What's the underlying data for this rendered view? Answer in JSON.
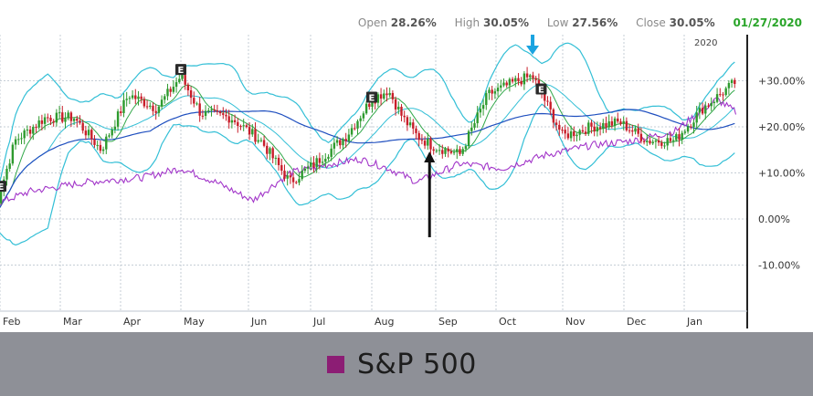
{
  "header": {
    "open_label": "Open",
    "open_value": "28.26%",
    "high_label": "High",
    "high_value": "30.05%",
    "low_label": "Low",
    "low_value": "27.56%",
    "close_label": "Close",
    "close_value": "30.05%",
    "date": "01/27/2020"
  },
  "legend": {
    "label": "S&P 500",
    "color": "#8c1d74"
  },
  "colors": {
    "up_candle": "#2e9a2e",
    "down_candle": "#c81e2a",
    "bollinger": "#33bfd6",
    "ma_short": "#32a84a",
    "ma_long": "#1f4fbf",
    "sp500": "#a236c9",
    "arrow_blue": "#1aa3e0",
    "arrow_black": "#111111"
  },
  "chart_data": {
    "type": "line",
    "title": "",
    "year_label": "2020",
    "x_ticks": [
      "Feb",
      "Mar",
      "Apr",
      "May",
      "Jun",
      "Jul",
      "Aug",
      "Sep",
      "Oct",
      "Nov",
      "Dec",
      "Jan"
    ],
    "y_ticks": [
      "+30.00%",
      "+20.00%",
      "+10.00%",
      "0.00%",
      "-10.00%"
    ],
    "y_tick_values": [
      30,
      20,
      10,
      0,
      -10
    ],
    "ylim": [
      -20,
      40
    ],
    "grid": true,
    "earnings_marker": "E",
    "earnings_dates": [
      "2019-01-31",
      "2019-05-01",
      "2019-08-01",
      "2019-10-22"
    ],
    "annotations": [
      {
        "type": "arrow-down",
        "color": "blue",
        "date": "2019-10-18"
      },
      {
        "type": "arrow-up",
        "color": "black",
        "date": "2019-08-29"
      }
    ],
    "series": [
      {
        "name": "",
        "kind": "price",
        "x": [
          "2019-01-28",
          "2019-02-08",
          "2019-02-22",
          "2019-03-08",
          "2019-03-22",
          "2019-04-05",
          "2019-04-19",
          "2019-05-01",
          "2019-05-10",
          "2019-05-24",
          "2019-06-07",
          "2019-06-21",
          "2019-07-03",
          "2019-07-19",
          "2019-08-01",
          "2019-08-09",
          "2019-08-16",
          "2019-08-23",
          "2019-08-30",
          "2019-09-13",
          "2019-09-27",
          "2019-10-11",
          "2019-10-18",
          "2019-11-01",
          "2019-11-15",
          "2019-11-29",
          "2019-12-13",
          "2019-12-27",
          "2020-01-10",
          "2020-01-27"
        ],
        "values": [
          0,
          17,
          22,
          22,
          15,
          27,
          24,
          31,
          23,
          22,
          17,
          8,
          12,
          18,
          26,
          28,
          22,
          18,
          16,
          14,
          27,
          30,
          31,
          18,
          20,
          21,
          17,
          17,
          24,
          30
        ]
      },
      {
        "name": "S&P 500",
        "kind": "benchmark",
        "x": [
          "2019-01-28",
          "2019-02-15",
          "2019-03-15",
          "2019-04-12",
          "2019-05-01",
          "2019-05-17",
          "2019-06-03",
          "2019-06-21",
          "2019-07-12",
          "2019-07-26",
          "2019-08-09",
          "2019-08-23",
          "2019-09-13",
          "2019-10-04",
          "2019-10-25",
          "2019-11-15",
          "2019-12-06",
          "2019-12-27",
          "2020-01-17",
          "2020-01-27"
        ],
        "values": [
          3,
          6,
          8,
          9,
          11,
          8,
          4,
          10,
          12,
          13,
          11,
          8,
          12,
          11,
          14,
          16,
          17,
          19,
          26,
          23
        ]
      }
    ]
  }
}
